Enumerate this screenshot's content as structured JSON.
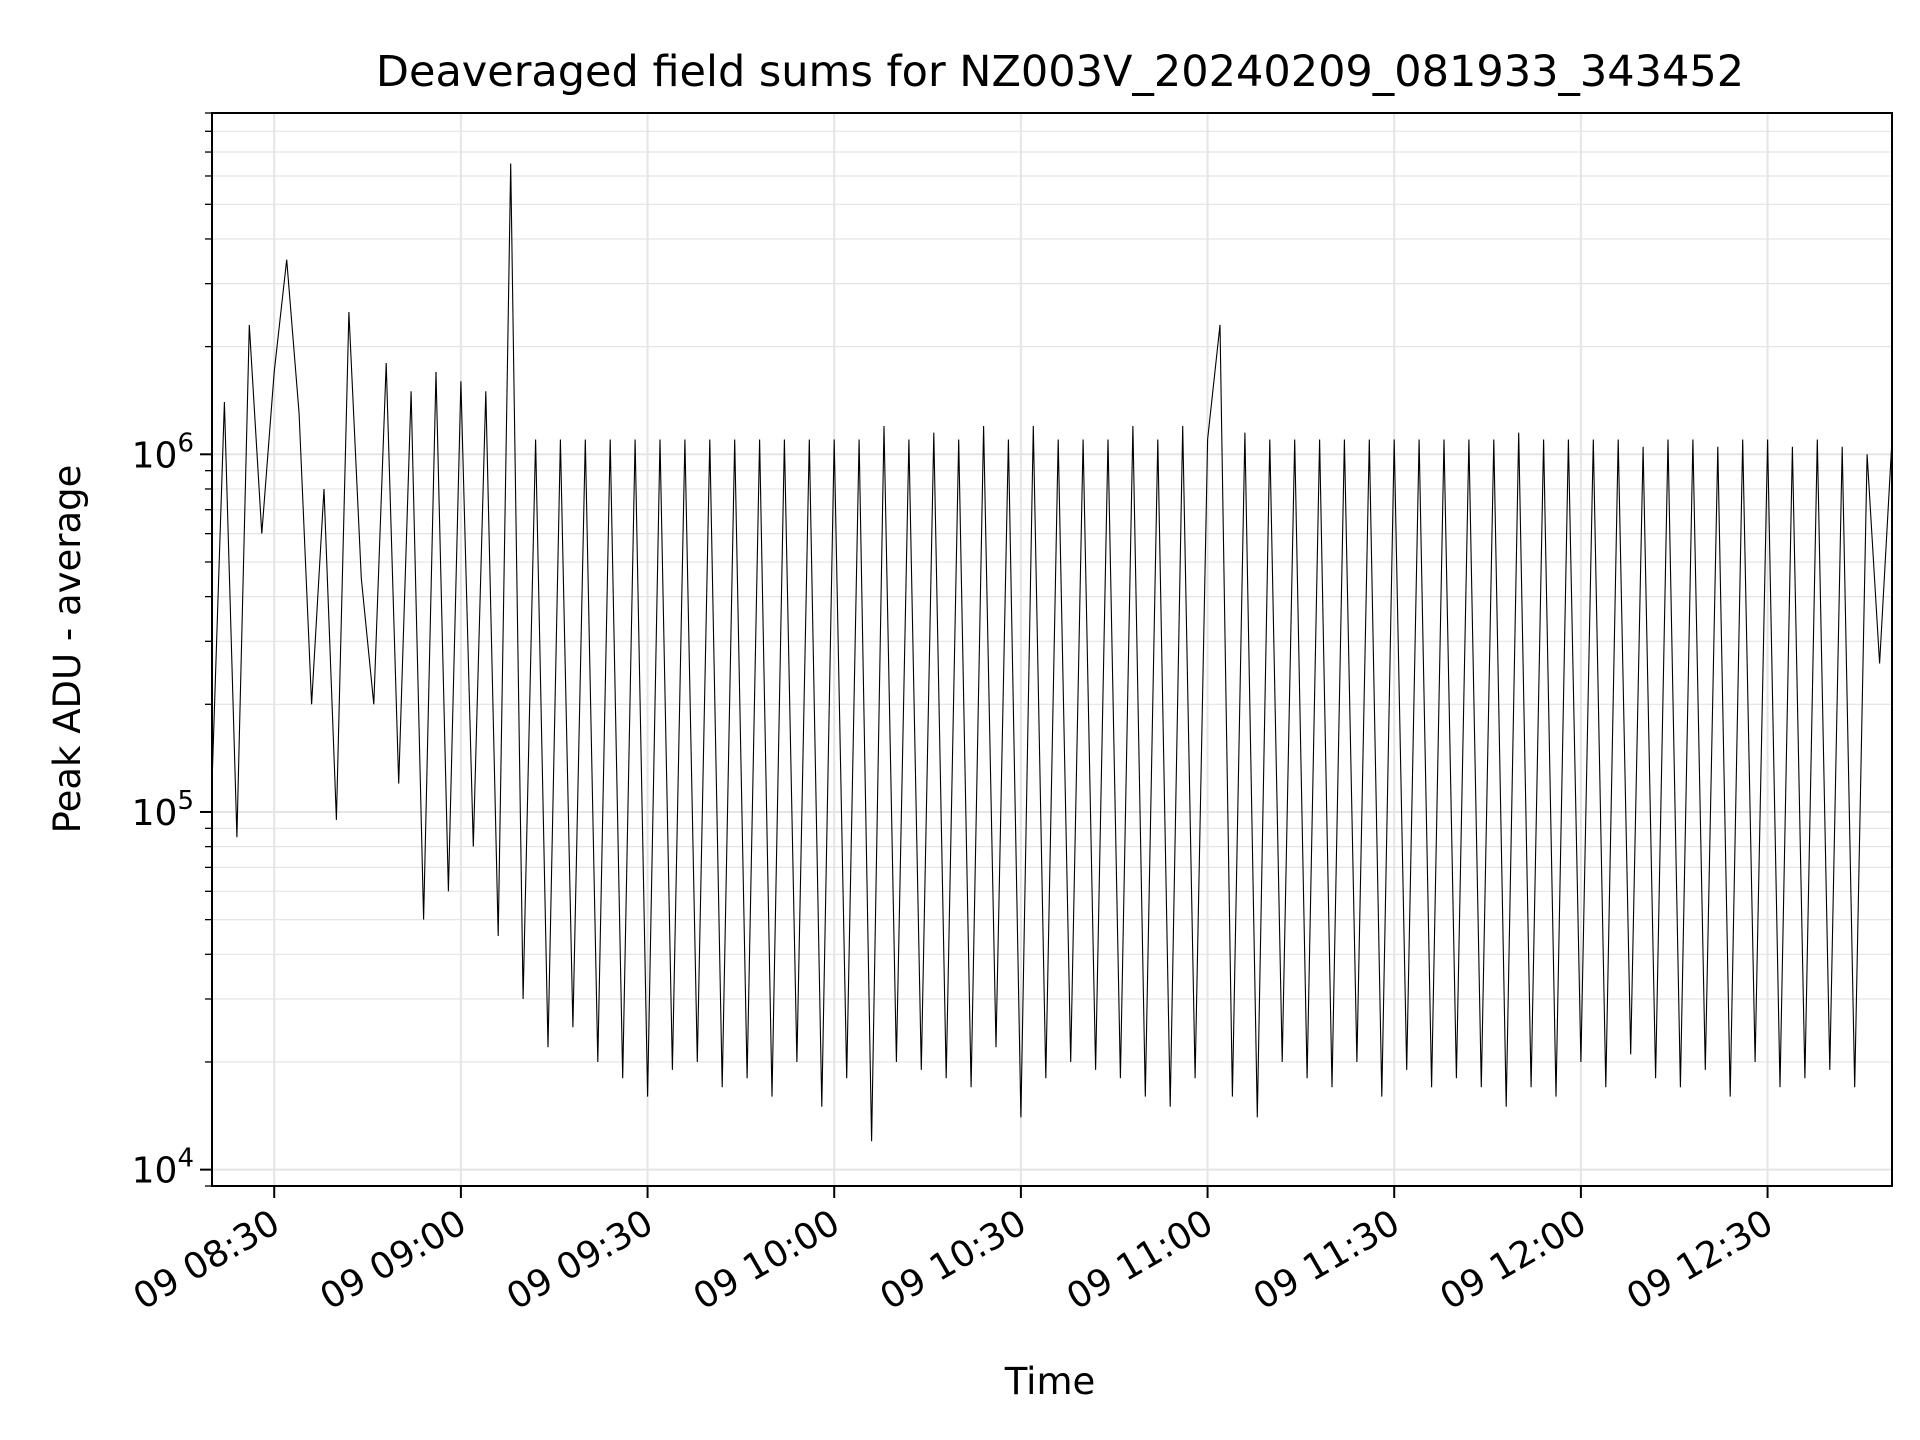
{
  "chart_data": {
    "type": "line",
    "title": "Deaveraged field sums for NZ003V_20240209_081933_343452",
    "xlabel": "Time",
    "ylabel": "Peak ADU - average",
    "yscale": "log",
    "ylim": [
      9000,
      9000000
    ],
    "xlim": [
      "2024-02-09 08:20",
      "2024-02-09 12:50"
    ],
    "grid": true,
    "line_color": "#000000",
    "grid_color": "#e5e5e5",
    "x_ticks": [
      {
        "value": "2024-02-09 08:30",
        "label": "09 08:30"
      },
      {
        "value": "2024-02-09 09:00",
        "label": "09 09:00"
      },
      {
        "value": "2024-02-09 09:30",
        "label": "09 09:30"
      },
      {
        "value": "2024-02-09 10:00",
        "label": "09 10:00"
      },
      {
        "value": "2024-02-09 10:30",
        "label": "09 10:30"
      },
      {
        "value": "2024-02-09 11:00",
        "label": "09 11:00"
      },
      {
        "value": "2024-02-09 11:30",
        "label": "09 11:30"
      },
      {
        "value": "2024-02-09 12:00",
        "label": "09 12:00"
      },
      {
        "value": "2024-02-09 12:30",
        "label": "09 12:30"
      }
    ],
    "y_ticks": [
      {
        "value": 10000,
        "base": "10",
        "exp": "4"
      },
      {
        "value": 100000,
        "base": "10",
        "exp": "5"
      },
      {
        "value": 1000000,
        "base": "10",
        "exp": "6"
      }
    ],
    "series": [
      {
        "x": [
          "08:20",
          "08:22",
          "08:24",
          "08:26",
          "08:28",
          "08:30",
          "08:32",
          "08:34",
          "08:36",
          "08:38",
          "08:40",
          "08:42",
          "08:44",
          "08:46",
          "08:48",
          "08:50",
          "08:52",
          "08:54",
          "08:56",
          "08:58",
          "09:00",
          "09:02",
          "09:04",
          "09:06",
          "09:08",
          "09:10",
          "09:12",
          "09:14",
          "09:16",
          "09:18",
          "09:20",
          "09:22",
          "09:24",
          "09:26",
          "09:28",
          "09:30",
          "09:32",
          "09:34",
          "09:36",
          "09:38",
          "09:40",
          "09:42",
          "09:44",
          "09:46",
          "09:48",
          "09:50",
          "09:52",
          "09:54",
          "09:56",
          "09:58",
          "10:00",
          "10:02",
          "10:04",
          "10:06",
          "10:08",
          "10:10",
          "10:12",
          "10:14",
          "10:16",
          "10:18",
          "10:20",
          "10:22",
          "10:24",
          "10:26",
          "10:28",
          "10:30",
          "10:32",
          "10:34",
          "10:36",
          "10:38",
          "10:40",
          "10:42",
          "10:44",
          "10:46",
          "10:48",
          "10:50",
          "10:52",
          "10:54",
          "10:56",
          "10:58",
          "11:00",
          "11:02",
          "11:04",
          "11:06",
          "11:08",
          "11:10",
          "11:12",
          "11:14",
          "11:16",
          "11:18",
          "11:20",
          "11:22",
          "11:24",
          "11:26",
          "11:28",
          "11:30",
          "11:32",
          "11:34",
          "11:36",
          "11:38",
          "11:40",
          "11:42",
          "11:44",
          "11:46",
          "11:48",
          "11:50",
          "11:52",
          "11:54",
          "11:56",
          "11:58",
          "12:00",
          "12:02",
          "12:04",
          "12:06",
          "12:08",
          "12:10",
          "12:12",
          "12:14",
          "12:16",
          "12:18",
          "12:20",
          "12:22",
          "12:24",
          "12:26",
          "12:28",
          "12:30",
          "12:32",
          "12:34",
          "12:36",
          "12:38",
          "12:40",
          "12:42",
          "12:44",
          "12:46",
          "12:48",
          "12:50"
        ],
        "values": [
          120000,
          1400000,
          85000,
          2300000,
          600000,
          1700000,
          3500000,
          1300000,
          200000,
          800000,
          95000,
          2500000,
          450000,
          200000,
          1800000,
          120000,
          1500000,
          50000,
          1700000,
          60000,
          1600000,
          80000,
          1500000,
          45000,
          6500000,
          30000,
          1100000,
          22000,
          1100000,
          25000,
          1100000,
          20000,
          1100000,
          18000,
          1100000,
          16000,
          1100000,
          19000,
          1100000,
          20000,
          1100000,
          17000,
          1100000,
          18000,
          1100000,
          16000,
          1100000,
          20000,
          1100000,
          15000,
          1100000,
          18000,
          1100000,
          12000,
          1200000,
          20000,
          1100000,
          19000,
          1150000,
          18000,
          1100000,
          17000,
          1200000,
          22000,
          1100000,
          14000,
          1200000,
          18000,
          1100000,
          20000,
          1100000,
          19000,
          1100000,
          18000,
          1200000,
          16000,
          1100000,
          15000,
          1200000,
          18000,
          1100000,
          2300000,
          16000,
          1150000,
          14000,
          1100000,
          20000,
          1100000,
          18000,
          1100000,
          17000,
          1100000,
          20000,
          1100000,
          16000,
          1100000,
          19000,
          1100000,
          17000,
          1100000,
          18000,
          1100000,
          17000,
          1100000,
          15000,
          1150000,
          17000,
          1100000,
          16000,
          1100000,
          20000,
          1100000,
          17000,
          1100000,
          21000,
          1050000,
          18000,
          1100000,
          17000,
          1100000,
          19000,
          1050000,
          16000,
          1100000,
          20000,
          1100000,
          17000,
          1050000,
          18000,
          1100000,
          19000,
          1050000,
          17000,
          1000000,
          260000,
          1100000
        ]
      }
    ]
  }
}
